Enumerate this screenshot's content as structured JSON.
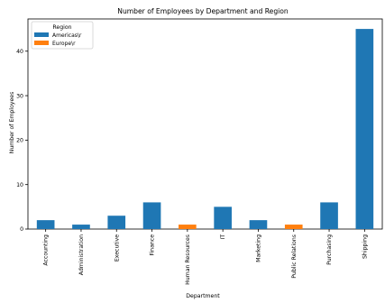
{
  "chart_data": {
    "type": "bar",
    "title": "Number of Employees by Department and Region",
    "xlabel": "Department",
    "ylabel": "Number of Employees",
    "ylim": [
      0,
      47.25
    ],
    "yticks": [
      0,
      10,
      20,
      30,
      40
    ],
    "grid": false,
    "legend": {
      "title": "Region",
      "placement": "top-left",
      "entries": [
        {
          "name": "Americas\\r",
          "color": "#1f77b4"
        },
        {
          "name": "Europe\\r",
          "color": "#ff7f0e"
        }
      ]
    },
    "categories": [
      "Accounting",
      "Administration",
      "Executive",
      "Finance",
      "Human Resources",
      "IT",
      "Marketing",
      "Public Relations",
      "Purchasing",
      "Shipping"
    ],
    "series": [
      {
        "name": "Americas\\r",
        "color": "#1f77b4",
        "values": [
          2,
          1,
          3,
          6,
          null,
          5,
          2,
          null,
          6,
          45
        ]
      },
      {
        "name": "Europe\\r",
        "color": "#ff7f0e",
        "values": [
          null,
          null,
          null,
          null,
          1,
          null,
          null,
          1,
          null,
          null
        ]
      }
    ]
  }
}
